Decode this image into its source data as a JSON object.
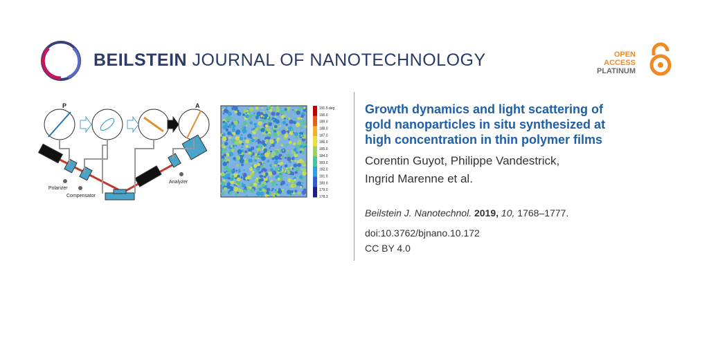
{
  "header": {
    "journal_bold": "BEILSTEIN",
    "journal_rest": "JOURNAL OF NANOTECHNOLOGY",
    "badge": [
      "OPEN",
      "ACCESS",
      "PLATINUM"
    ]
  },
  "figure": {
    "labels": {
      "p": "P",
      "a": "A",
      "polarizer": "Polarizer",
      "compensator": "Compensator",
      "analyzer": "Analyzer",
      "scale": "1 mm"
    },
    "colorbar": [
      "191.5 deg",
      "190.0",
      "189.0",
      "188.0",
      "187.0",
      "186.0",
      "185.0",
      "184.0",
      "183.0",
      "182.0",
      "181.0",
      "180.0",
      "179.0",
      "178.3"
    ]
  },
  "article": {
    "title_lines": [
      "Growth dynamics and light scattering of",
      "gold nanoparticles in situ synthesized at",
      "high concentration in thin polymer films"
    ],
    "author_lines": [
      "Corentin Guyot, Philippe Vandestrick,",
      "Ingrid Marenne et al."
    ],
    "citation": {
      "journal": "Beilstein J. Nanotechnol.",
      "year": "2019,",
      "volume": "10,",
      "pages": "1768–1777."
    },
    "doi": "doi:10.3762/bjnano.10.172",
    "license": "CC BY 4.0"
  }
}
